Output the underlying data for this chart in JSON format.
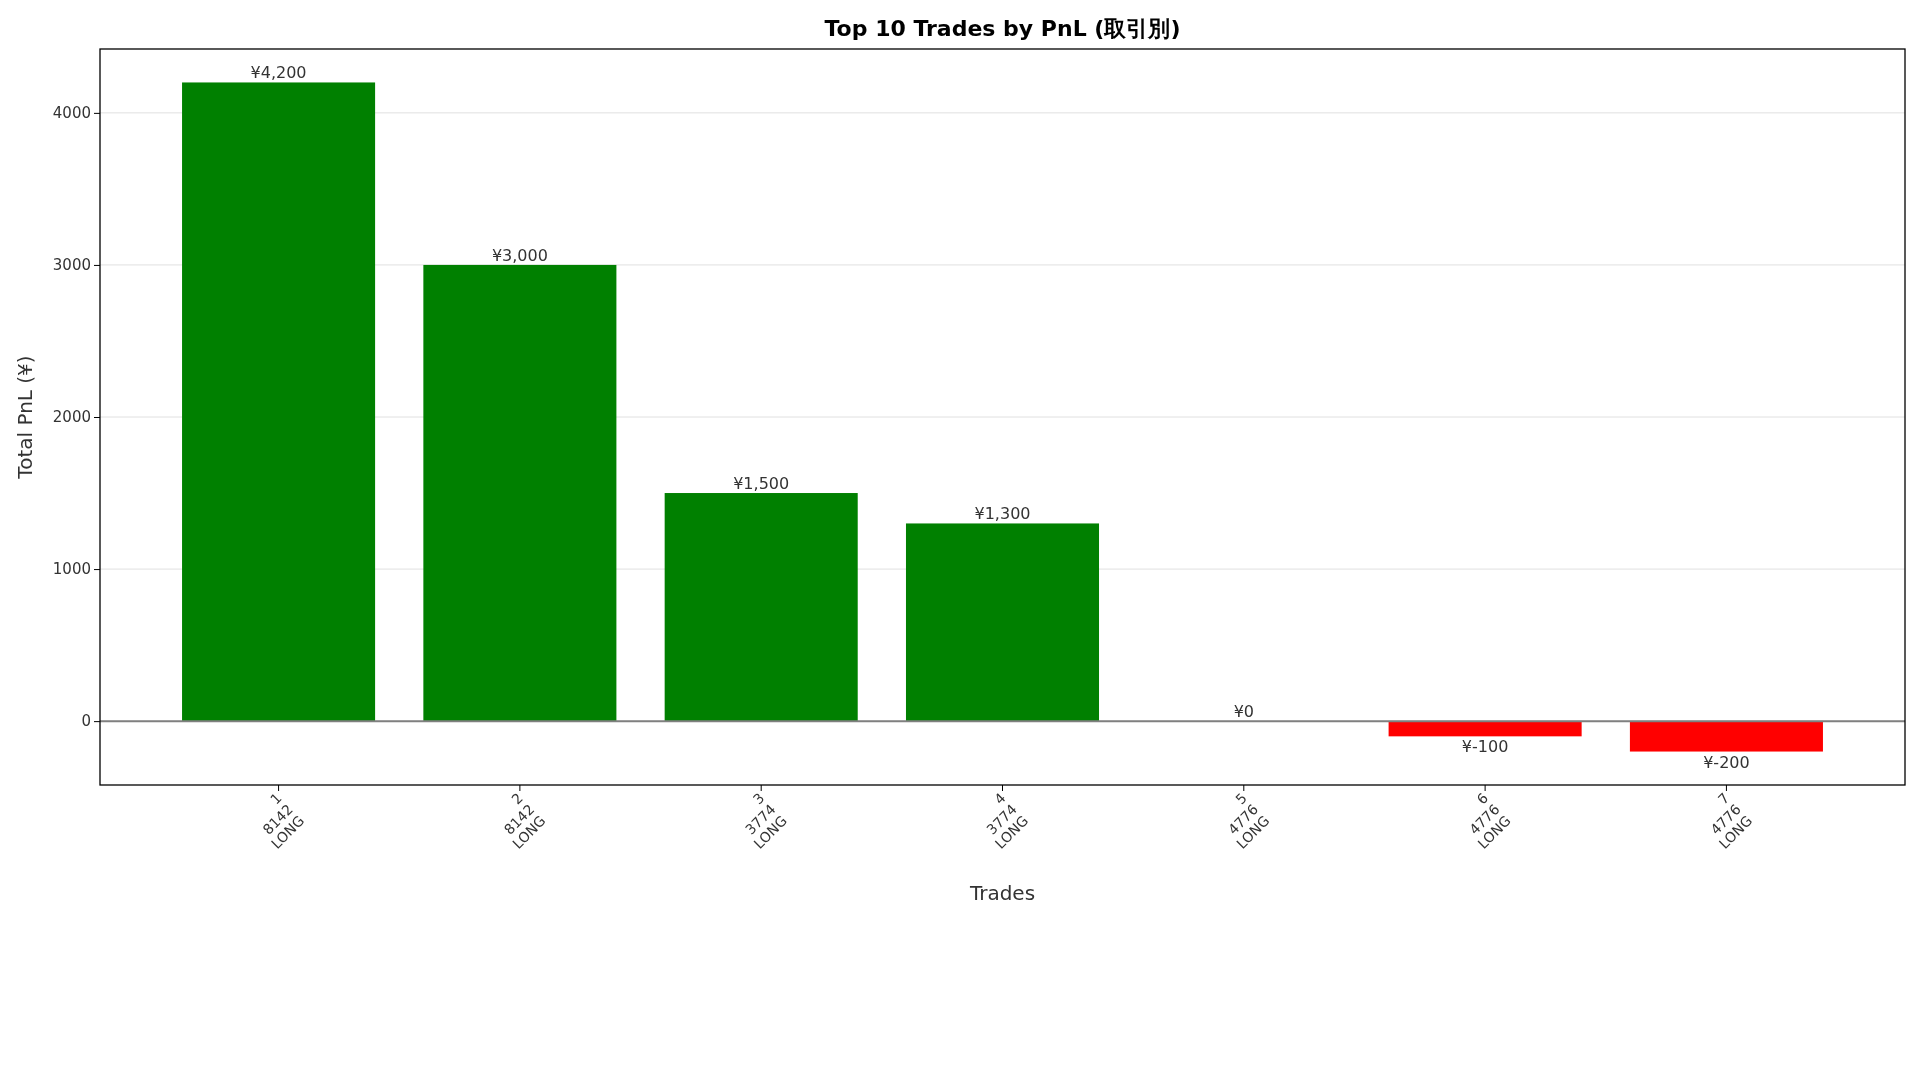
{
  "chart_data": {
    "type": "bar",
    "title": "Top 10 Trades by PnL (取引別)",
    "xlabel": "Trades",
    "ylabel": "Total PnL (¥)",
    "categories": [
      "1\n8142\nLONG",
      "2\n8142\nLONG",
      "3\n3774\nLONG",
      "4\n3774\nLONG",
      "5\n4776\nLONG",
      "6\n4776\nLONG",
      "7\n4776\nLONG"
    ],
    "values": [
      4200,
      3000,
      1500,
      1300,
      0,
      -100,
      -200
    ],
    "colors": [
      "#008000",
      "#008000",
      "#008000",
      "#008000",
      "#008000",
      "#ff0000",
      "#ff0000"
    ],
    "value_labels": [
      "¥4,200",
      "¥3,000",
      "¥1,500",
      "¥1,300",
      "¥0",
      "¥-100",
      "¥-200"
    ],
    "ylim": [
      -420,
      4420
    ],
    "yticks": [
      0,
      1000,
      2000,
      3000,
      4000
    ],
    "grid": "y",
    "ref_lines": [
      {
        "axis": "y",
        "value": 0,
        "color": "#808080"
      }
    ]
  }
}
